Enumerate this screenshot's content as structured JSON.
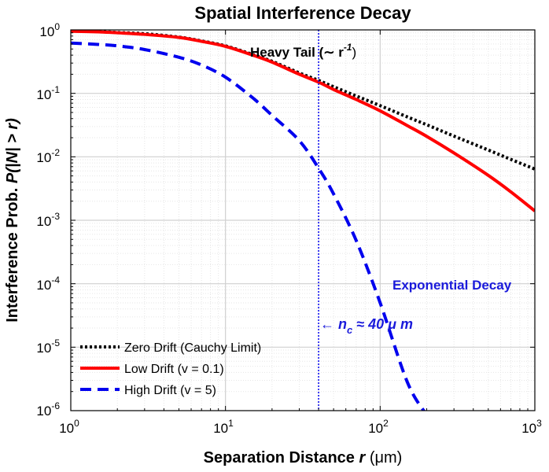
{
  "chart_data": {
    "type": "line",
    "title": "Spatial Interference Decay",
    "xlabel": {
      "main": "Separation Distance ",
      "var": "r",
      "unit": " (μm)"
    },
    "ylabel": {
      "main": "Interference Prob. ",
      "var": "P(|N| > r)"
    },
    "xscale": "log",
    "yscale": "log",
    "xlim": [
      1,
      1000
    ],
    "ylim": [
      1e-06,
      1
    ],
    "grid": true,
    "x_tick_labels": [
      {
        "base": "10",
        "exp": "0"
      },
      {
        "base": "10",
        "exp": "1"
      },
      {
        "base": "10",
        "exp": "2"
      },
      {
        "base": "10",
        "exp": "3"
      }
    ],
    "y_tick_labels": [
      {
        "base": "10",
        "exp": "-6"
      },
      {
        "base": "10",
        "exp": "-5"
      },
      {
        "base": "10",
        "exp": "-4"
      },
      {
        "base": "10",
        "exp": "-3"
      },
      {
        "base": "10",
        "exp": "-2"
      },
      {
        "base": "10",
        "exp": "-1"
      },
      {
        "base": "10",
        "exp": "0"
      }
    ],
    "x": [
      1,
      1.5,
      2,
      3,
      5,
      7,
      10,
      15,
      20,
      30,
      40,
      50,
      70,
      100,
      150,
      200,
      300,
      500,
      700,
      1000
    ],
    "series": [
      {
        "name": "Zero Drift (Cauchy Limit)",
        "color": "#000000",
        "style": "dotted",
        "values": [
          0.96,
          0.94,
          0.91,
          0.87,
          0.77,
          0.67,
          0.56,
          0.41,
          0.32,
          0.21,
          0.16,
          0.127,
          0.091,
          0.064,
          0.0425,
          0.032,
          0.0212,
          0.0128,
          0.0091,
          0.0064
        ]
      },
      {
        "name": "Low Drift",
        "name_suffix": "(v = 0.1)",
        "color": "#ff0000",
        "style": "solid",
        "values": [
          0.95,
          0.93,
          0.9,
          0.85,
          0.76,
          0.66,
          0.55,
          0.4,
          0.31,
          0.2,
          0.15,
          0.115,
          0.08,
          0.053,
          0.031,
          0.021,
          0.0115,
          0.0051,
          0.0028,
          0.0014
        ]
      },
      {
        "name": "High Drift",
        "name_suffix": "(v = 5)",
        "color": "#0000ee",
        "style": "dashed",
        "values": [
          0.62,
          0.59,
          0.56,
          0.49,
          0.37,
          0.28,
          0.18,
          0.085,
          0.045,
          0.018,
          0.0066,
          0.0026,
          0.00048,
          5e-05,
          2.8e-06,
          8.5e-07,
          null,
          null,
          null,
          null
        ]
      }
    ],
    "vline": {
      "x": 40,
      "color": "#0000ee",
      "style": "dotted"
    },
    "annotations": {
      "heavy_tail": "Heavy Tail (∼ r",
      "heavy_tail_exp": "-1",
      "heavy_tail_close": ")",
      "exponential": "Exponential Decay",
      "critical": "← n",
      "critical_sub": "c",
      "critical_rest": " ≈ 40 μ m"
    },
    "legend_position": "bottom-left"
  }
}
